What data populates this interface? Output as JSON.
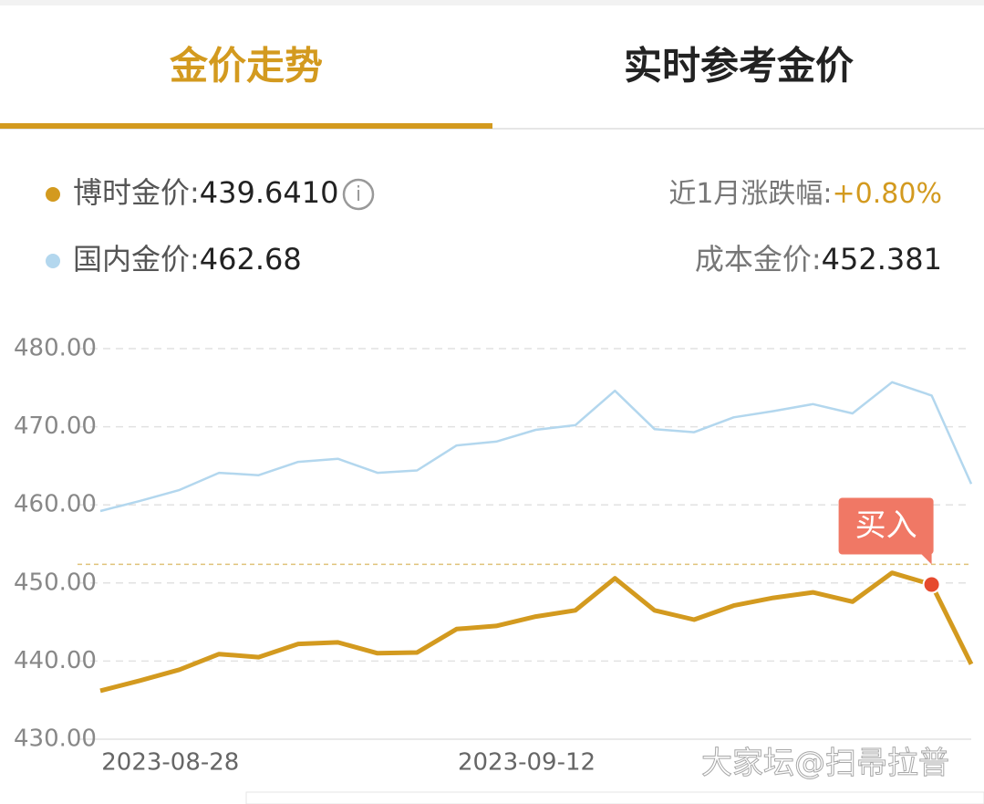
{
  "tabs": [
    "金价走势",
    "实时参考金价"
  ],
  "info": {
    "bs_label": "博时金价:",
    "bs_value": "439.6410",
    "domestic_label": "国内金价:",
    "change_label": "近1月涨跌幅:",
    "change_value": "+0.80%",
    "cost_label": "成本金价:"
  },
  "watermark": "大家坛@扫帚拉普",
  "chart_data": {
    "type": "line",
    "categories": [
      null,
      null,
      "2023-08-28",
      null,
      null,
      null,
      null,
      null,
      null,
      null,
      null,
      "2023-09-12",
      null,
      null,
      null,
      null,
      null,
      null,
      null,
      null,
      null,
      null,
      null
    ],
    "series": [
      {
        "name": "国内金价",
        "color": "#b3d7ee",
        "values": [
          459.2,
          460.5,
          461.9,
          464.1,
          463.8,
          465.5,
          465.9,
          464.1,
          464.4,
          467.6,
          468.1,
          469.6,
          470.2,
          474.6,
          469.7,
          469.3,
          471.2,
          472.0,
          472.9,
          471.7,
          475.7,
          474.0,
          462.68
        ]
      },
      {
        "name": "博时金价",
        "color": "#d39a1f",
        "values": [
          436.2,
          437.5,
          438.9,
          440.9,
          440.5,
          442.2,
          442.4,
          441.0,
          441.1,
          444.1,
          444.5,
          445.7,
          446.5,
          450.6,
          446.5,
          445.3,
          447.1,
          448.1,
          448.8,
          447.6,
          451.3,
          449.8,
          439.6
        ]
      }
    ],
    "cost_line": 452.381,
    "annotation": "买入",
    "ylim": [
      430,
      480
    ],
    "yticks": [
      {
        "value": 430,
        "label": "430.00"
      },
      {
        "value": 440,
        "label": "440.00"
      },
      {
        "value": 450,
        "label": "450.00"
      },
      {
        "value": 460,
        "label": "460.00"
      },
      {
        "value": 470,
        "label": "470.00"
      },
      {
        "value": 480,
        "label": "480.00"
      }
    ],
    "grid": true
  }
}
